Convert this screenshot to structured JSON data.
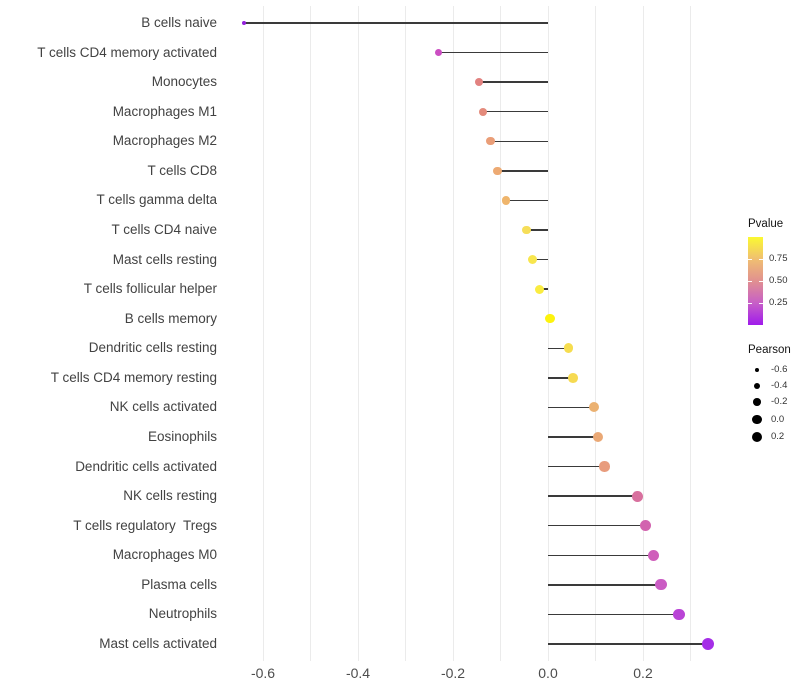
{
  "chart_data": {
    "type": "lollipop",
    "orientation": "horizontal",
    "title": "",
    "xlabel": "",
    "ylabel": "",
    "x_tick_labels": [
      "-0.6",
      "-0.4",
      "-0.2",
      "0.0",
      "0.2"
    ],
    "x_tick_values": [
      -0.6,
      -0.4,
      -0.2,
      0.0,
      0.2
    ],
    "x_range": [
      -0.69,
      0.39
    ],
    "gridline_values": [
      -0.6,
      -0.5,
      -0.4,
      -0.3,
      -0.2,
      -0.1,
      0.0,
      0.1,
      0.2,
      0.3
    ],
    "grid": "vertical light-gray lines only, white panel background",
    "legend_position": "right",
    "categories": [
      "B cells naive",
      "T cells CD4 memory activated",
      "Monocytes",
      "Macrophages M1",
      "Macrophages M2",
      "T cells CD8",
      "T cells gamma delta",
      "T cells CD4 naive",
      "Mast cells resting",
      "T cells follicular helper",
      "B cells memory",
      "Dendritic cells resting",
      "T cells CD4 memory resting",
      "NK cells activated",
      "Eosinophils",
      "Dendritic cells activated",
      "NK cells resting",
      "T cells regulatory  Tregs",
      "Macrophages M0",
      "Plasma cells",
      "Neutrophils",
      "Mast cells activated"
    ],
    "points": [
      {
        "label": "B cells naive",
        "pearson": -0.64,
        "pvalue": 0.02,
        "color": "#9321dc"
      },
      {
        "label": "T cells CD4 memory activated",
        "pearson": -0.23,
        "pvalue": 0.27,
        "color": "#cb4ec2"
      },
      {
        "label": "Monocytes",
        "pearson": -0.145,
        "pvalue": 0.46,
        "color": "#e28280"
      },
      {
        "label": "Macrophages M1",
        "pearson": -0.136,
        "pvalue": 0.49,
        "color": "#e48b7c"
      },
      {
        "label": "Macrophages M2",
        "pearson": -0.121,
        "pvalue": 0.56,
        "color": "#ea9e78"
      },
      {
        "label": "T cells CD8",
        "pearson": -0.106,
        "pvalue": 0.61,
        "color": "#edaa73"
      },
      {
        "label": "T cells gamma delta",
        "pearson": -0.088,
        "pvalue": 0.66,
        "color": "#efb56c"
      },
      {
        "label": "T cells CD4 naive",
        "pearson": -0.046,
        "pvalue": 0.8,
        "color": "#f6de59"
      },
      {
        "label": "Mast cells resting",
        "pearson": -0.032,
        "pvalue": 0.85,
        "color": "#f8e64e"
      },
      {
        "label": "T cells follicular helper",
        "pearson": -0.018,
        "pvalue": 0.9,
        "color": "#faec41"
      },
      {
        "label": "B cells memory",
        "pearson": 0.004,
        "pvalue": 0.97,
        "color": "#fdf30d"
      },
      {
        "label": "Dendritic cells resting",
        "pearson": 0.043,
        "pvalue": 0.82,
        "color": "#f6dd4f"
      },
      {
        "label": "T cells CD4 memory resting",
        "pearson": 0.053,
        "pvalue": 0.8,
        "color": "#f6da52"
      },
      {
        "label": "NK cells activated",
        "pearson": 0.097,
        "pvalue": 0.64,
        "color": "#ebb171"
      },
      {
        "label": "Eosinophils",
        "pearson": 0.105,
        "pvalue": 0.6,
        "color": "#eaa875"
      },
      {
        "label": "Dendritic cells activated",
        "pearson": 0.119,
        "pvalue": 0.55,
        "color": "#e89c7d"
      },
      {
        "label": "NK cells resting",
        "pearson": 0.189,
        "pvalue": 0.42,
        "color": "#d8709e"
      },
      {
        "label": "T cells regulatory  Tregs",
        "pearson": 0.206,
        "pvalue": 0.36,
        "color": "#d263af"
      },
      {
        "label": "Macrophages M0",
        "pearson": 0.222,
        "pvalue": 0.31,
        "color": "#cf5fbb"
      },
      {
        "label": "Plasma cells",
        "pearson": 0.238,
        "pvalue": 0.28,
        "color": "#cb5cc4"
      },
      {
        "label": "Neutrophils",
        "pearson": 0.276,
        "pvalue": 0.15,
        "color": "#b944d6"
      },
      {
        "label": "Mast cells activated",
        "pearson": 0.337,
        "pvalue": 0.06,
        "color": "#a52ee7"
      }
    ],
    "color_legend": {
      "title": "Pvalue",
      "tick_labels": [
        "0.75",
        "0.50",
        "0.25"
      ],
      "tick_values": [
        0.75,
        0.5,
        0.25
      ],
      "range": [
        0,
        1
      ],
      "gradient_stops_bottom_to_top": [
        "#A01BEB",
        "#C75FC7",
        "#E19090",
        "#F0BF71",
        "#FBF931"
      ]
    },
    "size_legend": {
      "title": "Pearson",
      "entries": [
        {
          "label": "-0.6",
          "value": -0.6
        },
        {
          "label": "-0.4",
          "value": -0.4
        },
        {
          "label": "-0.2",
          "value": -0.2
        },
        {
          "label": "0.0",
          "value": 0.0
        },
        {
          "label": "0.2",
          "value": 0.2
        }
      ]
    },
    "stem_color": "#3a3a3a",
    "axis_text_color": "#4d4d4d"
  },
  "legend": {
    "pvalue_title": "Pvalue",
    "pearson_title": "Pearson"
  }
}
